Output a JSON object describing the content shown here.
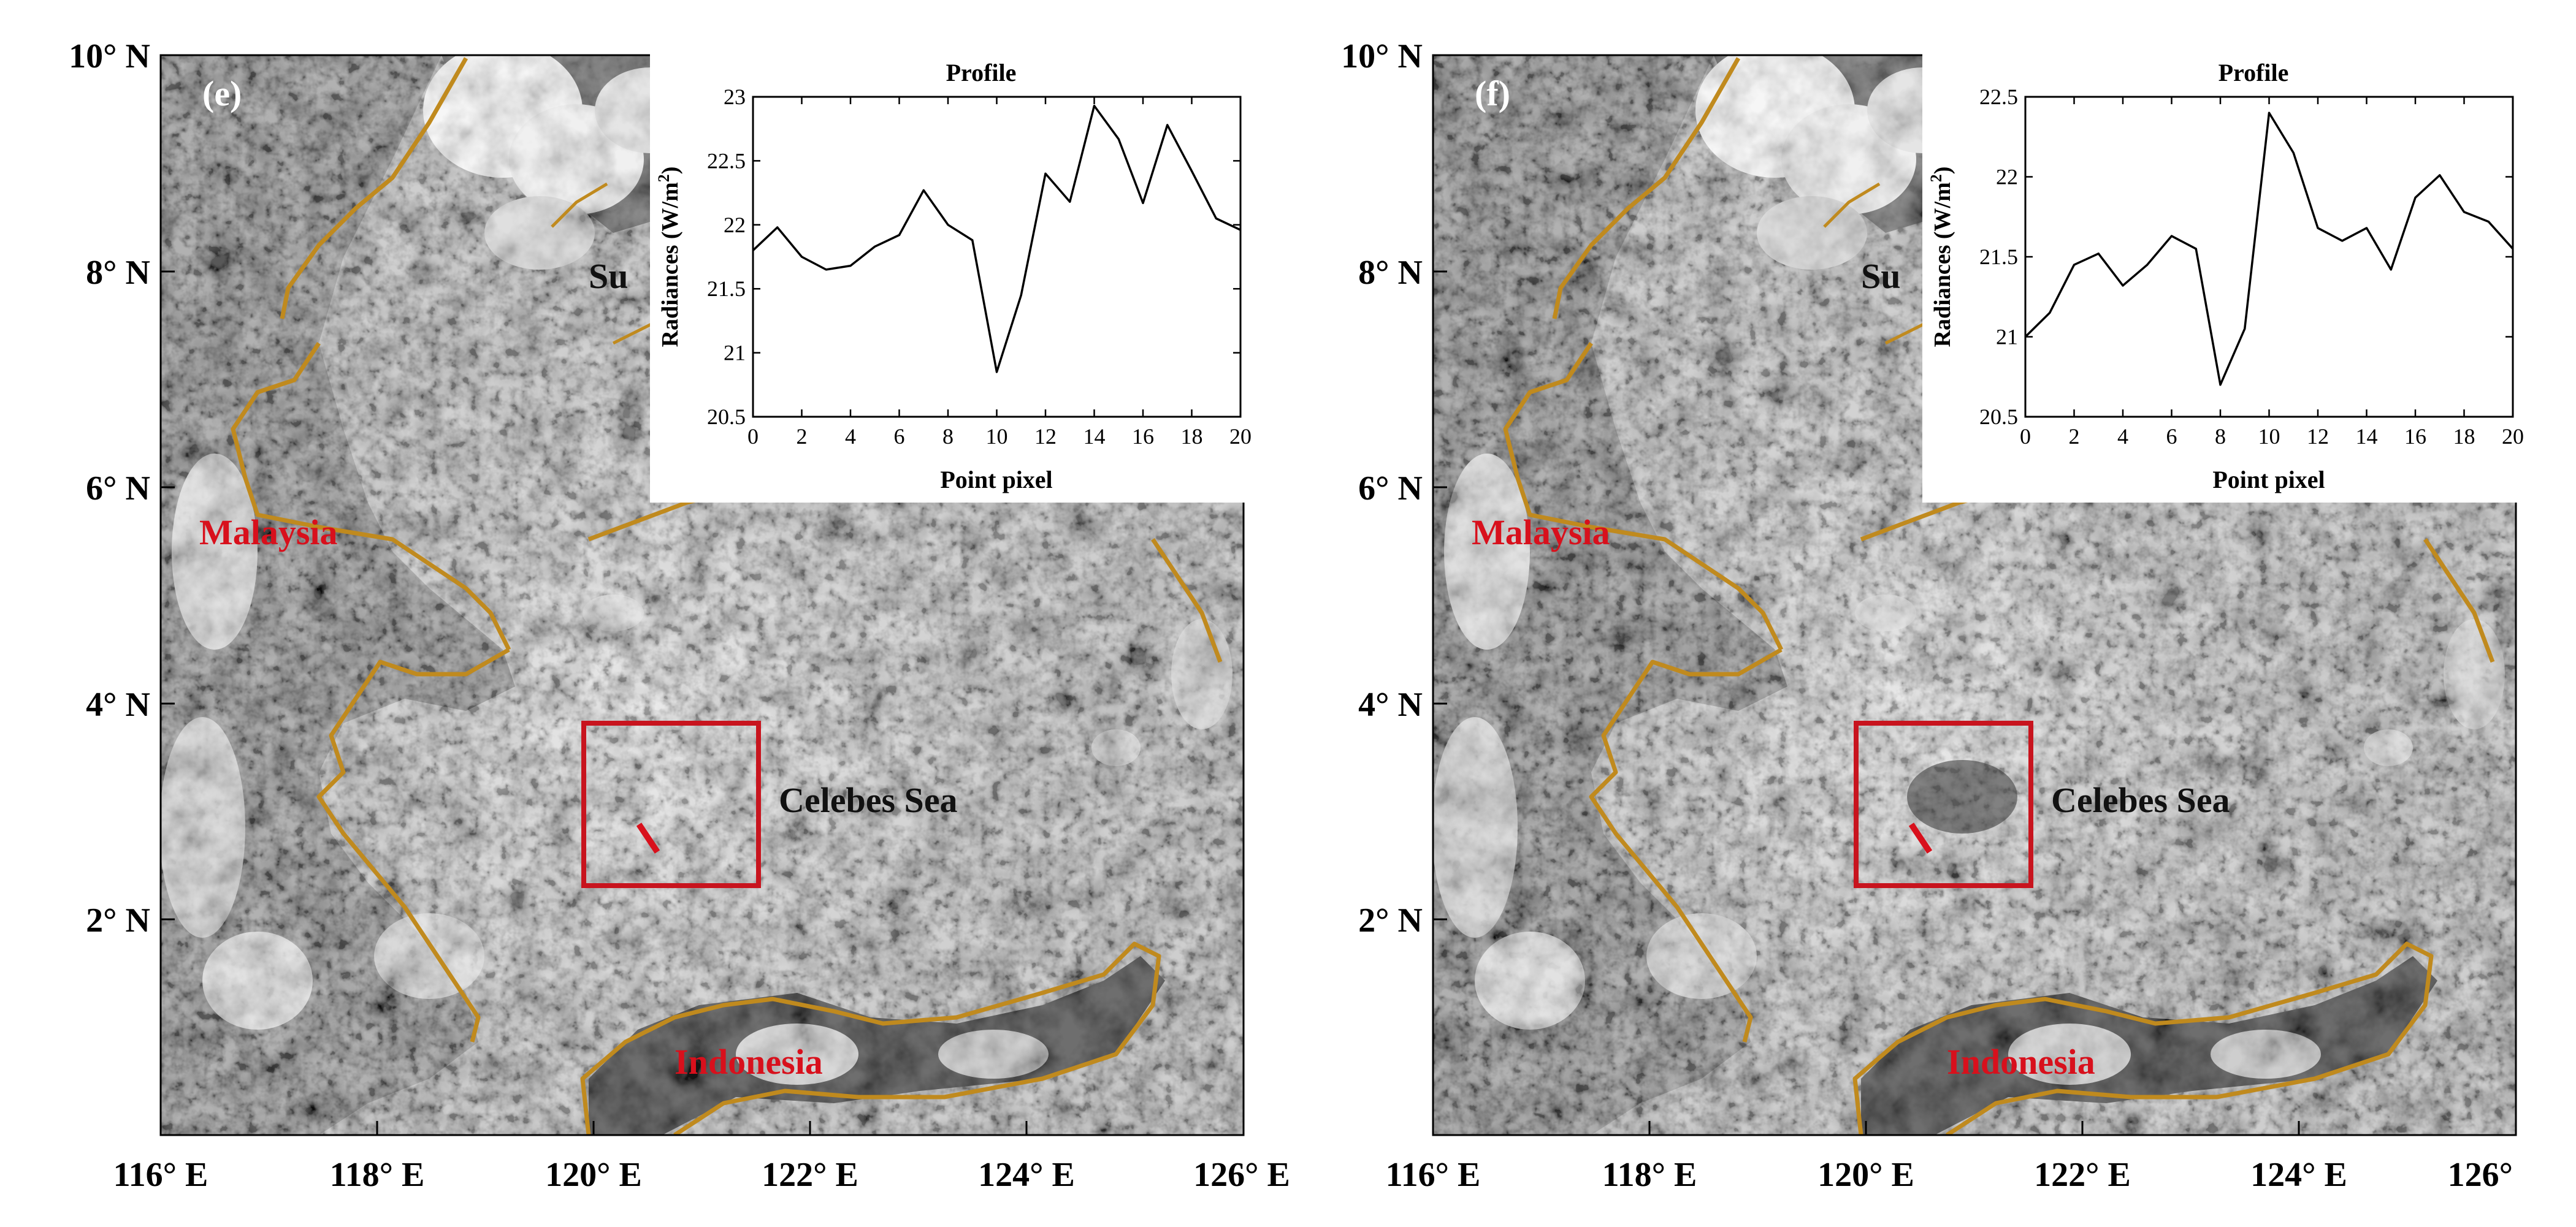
{
  "figure": {
    "panels": [
      {
        "id": "e",
        "panel_label": "(e)",
        "lat_ticks": [
          "10° N",
          "8° N",
          "6° N",
          "4° N",
          "2° N"
        ],
        "lon_ticks": [
          "116° E",
          "118° E",
          "120° E",
          "122° E",
          "124° E",
          "126° E"
        ],
        "places": {
          "malaysia": "Malaysia",
          "indonesia": "Indonesia",
          "sea": "Celebes Sea",
          "sulu_partial": "Su"
        }
      },
      {
        "id": "f",
        "panel_label": "(f)",
        "lat_ticks": [
          "10° N",
          "8° N",
          "6° N",
          "4° N",
          "2° N"
        ],
        "lon_ticks": [
          "116° E",
          "118° E",
          "120° E",
          "122° E",
          "124° E",
          "126°"
        ],
        "places": {
          "malaysia": "Malaysia",
          "indonesia": "Indonesia",
          "sea": "Celebes Sea",
          "sulu_partial": "Su"
        }
      }
    ],
    "colors": {
      "coast": "#c08a1e",
      "box": "#c8141e",
      "place_label": "#d8101c",
      "map_sea": "#787878",
      "map_dark": "#222222"
    }
  },
  "chart_data": [
    {
      "type": "line",
      "panel": "e",
      "title": "Profile",
      "xlabel": "Point pixel",
      "ylabel": "Radiances (W/m²)",
      "ylabel_main": "Radiances (W/m",
      "ylabel_sup": "2",
      "ylabel_end": ")",
      "xlim": [
        0,
        20
      ],
      "ylim": [
        20.5,
        23
      ],
      "xticks": [
        0,
        2,
        4,
        6,
        8,
        10,
        12,
        14,
        16,
        18,
        20
      ],
      "yticks": [
        20.5,
        21,
        21.5,
        22,
        22.5,
        23
      ],
      "x": [
        0,
        1,
        2,
        3,
        4,
        5,
        6,
        7,
        8,
        9,
        10,
        11,
        12,
        13,
        14,
        15,
        16,
        17,
        18,
        19,
        20
      ],
      "y": [
        21.8,
        21.98,
        21.75,
        21.65,
        21.68,
        21.83,
        21.92,
        22.27,
        22.0,
        21.88,
        20.85,
        21.45,
        22.4,
        22.18,
        22.93,
        22.67,
        22.17,
        22.78,
        22.42,
        22.05,
        21.96
      ]
    },
    {
      "type": "line",
      "panel": "f",
      "title": "Profile",
      "xlabel": "Point pixel",
      "ylabel": "Radiances (W/m²)",
      "ylabel_main": "Radiances (W/m",
      "ylabel_sup": "2",
      "ylabel_end": ")",
      "xlim": [
        0,
        20
      ],
      "ylim": [
        20.5,
        22.5
      ],
      "xticks": [
        0,
        2,
        4,
        6,
        8,
        10,
        12,
        14,
        16,
        18,
        20
      ],
      "yticks": [
        20.5,
        21,
        21.5,
        22,
        22.5
      ],
      "x": [
        0,
        1,
        2,
        3,
        4,
        5,
        6,
        7,
        8,
        9,
        10,
        11,
        12,
        13,
        14,
        15,
        16,
        17,
        18,
        19,
        20
      ],
      "y": [
        21.0,
        21.15,
        21.45,
        21.52,
        21.32,
        21.45,
        21.63,
        21.55,
        20.7,
        21.05,
        22.4,
        22.15,
        21.68,
        21.6,
        21.68,
        21.42,
        21.87,
        22.01,
        21.78,
        21.72,
        21.55
      ]
    }
  ]
}
